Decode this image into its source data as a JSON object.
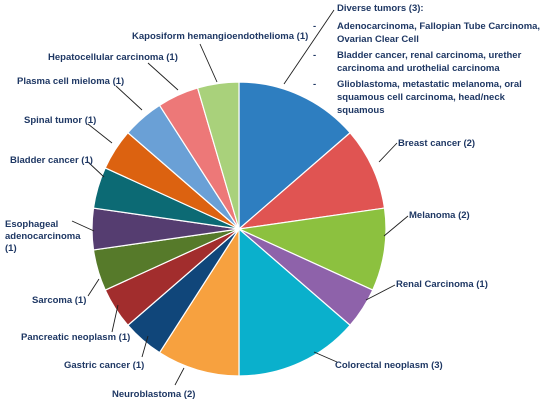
{
  "chart_data": {
    "type": "pie",
    "slices": [
      {
        "label": "Diverse tumors (3):",
        "value": 3,
        "color": "#2e7ec0"
      },
      {
        "label": "Breast cancer (2)",
        "value": 2,
        "color": "#e05452"
      },
      {
        "label": "Melanoma (2)",
        "value": 2,
        "color": "#8cc13f"
      },
      {
        "label": "Renal Carcinoma (1)",
        "value": 1,
        "color": "#8e62aa"
      },
      {
        "label": "Colorectal neoplasm (3)",
        "value": 3,
        "color": "#0ab0cc"
      },
      {
        "label": "Neuroblastoma (2)",
        "value": 2,
        "color": "#f7a13f"
      },
      {
        "label": "Gastric cancer (1)",
        "value": 1,
        "color": "#10467a"
      },
      {
        "label": "Pancreatic neoplasm (1)",
        "value": 1,
        "color": "#a22d2d"
      },
      {
        "label": "Sarcoma (1)",
        "value": 1,
        "color": "#567a2a"
      },
      {
        "label": [
          "Esophageal",
          "adenocarcinoma",
          "(1)"
        ],
        "value": 1,
        "color": "#553d70"
      },
      {
        "label": "Bladder cancer (1)",
        "value": 1,
        "color": "#0c6a74"
      },
      {
        "label": "Spinal tumor (1)",
        "value": 1,
        "color": "#dc6210"
      },
      {
        "label": "Plasma cell mieloma (1)",
        "value": 1,
        "color": "#6aa0d6"
      },
      {
        "label": "Hepatocellular carcinoma (1)",
        "value": 1,
        "color": "#ed7878"
      },
      {
        "label": "Kaposiform hemangioendothelioma (1)",
        "value": 1,
        "color": "#a9d17b"
      }
    ],
    "diverse_tumors": {
      "title": "Diverse tumors (3):",
      "items": [
        {
          "dash": "-",
          "text": "Adenocarcinoma, Fallopian Tube Carcinoma, Ovarian Clear Cell"
        },
        {
          "dash": "-",
          "text": "Bladder cancer, renal carcinoma, urether carcinoma and urothelial carcinoma"
        },
        {
          "dash": "-",
          "text": "Glioblastoma, metastatic melanoma, oral squamous cell carcinoma, head/neck squamous"
        }
      ]
    }
  }
}
